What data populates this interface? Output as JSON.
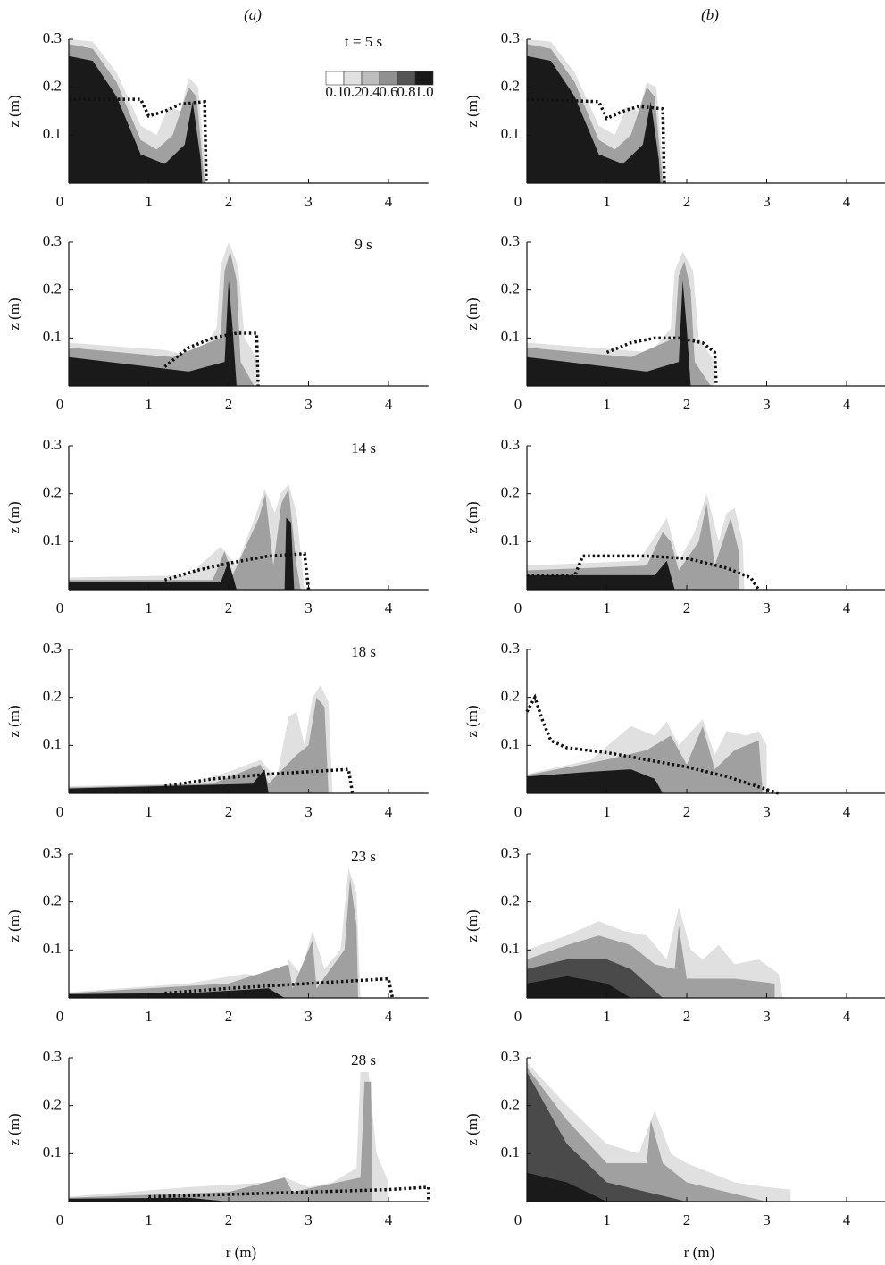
{
  "column_labels": [
    "(a)",
    "(b)"
  ],
  "chart_data": [
    {
      "type": "contour",
      "annotation": "t = 5 s",
      "ylabel": "z (m)",
      "xlim": [
        0,
        4.5
      ],
      "ylim": [
        0,
        0.3
      ],
      "xticks": [
        0,
        1,
        2,
        3,
        4
      ],
      "yticks": [
        0.1,
        0.2,
        0.3
      ],
      "contour_levels": [
        0.1,
        0.2,
        0.4,
        0.6,
        0.8,
        {
          "value": 1,
          "label": "1.0"
        }
      ],
      "level_colors": [
        "#ffffff",
        "#e0e0e0",
        "#bdbdbd",
        "#909090",
        "#555555",
        "#1a1a1a"
      ],
      "series": [
        {
          "color": "#111111",
          "x": [
            0,
            0.9,
            1.0,
            1.2,
            1.4,
            1.7,
            1.72
          ],
          "values": [
            0.175,
            0.175,
            0.14,
            0.15,
            0.165,
            0.17,
            0
          ]
        }
      ]
    },
    {
      "type": "contour",
      "ylabel": "z (m)",
      "xlim": [
        0,
        4.5
      ],
      "ylim": [
        0,
        0.3
      ],
      "xticks": [
        0,
        1,
        2,
        3,
        4
      ],
      "yticks": [
        0.1,
        0.2,
        0.3
      ],
      "series": [
        {
          "color": "#111111",
          "x": [
            0,
            0.9,
            1.0,
            1.2,
            1.4,
            1.7,
            1.72
          ],
          "values": [
            0.175,
            0.17,
            0.135,
            0.15,
            0.16,
            0.155,
            0
          ]
        }
      ]
    },
    {
      "type": "contour",
      "annotation": "9 s",
      "ylabel": "z (m)",
      "xlim": [
        0,
        4.5
      ],
      "ylim": [
        0,
        0.3
      ],
      "xticks": [
        0,
        1,
        2,
        3,
        4
      ],
      "yticks": [
        0.1,
        0.2,
        0.3
      ],
      "series": [
        {
          "color": "#111111",
          "x": [
            1.2,
            1.5,
            1.8,
            2.1,
            2.35,
            2.37
          ],
          "values": [
            0.04,
            0.08,
            0.1,
            0.11,
            0.11,
            0
          ]
        }
      ]
    },
    {
      "type": "contour",
      "ylabel": "z (m)",
      "xlim": [
        0,
        4.5
      ],
      "ylim": [
        0,
        0.3
      ],
      "xticks": [
        0,
        1,
        2,
        3,
        4
      ],
      "yticks": [
        0.1,
        0.2,
        0.3
      ],
      "series": [
        {
          "color": "#111111",
          "x": [
            1.0,
            1.3,
            1.6,
            1.9,
            2.2,
            2.35,
            2.37
          ],
          "values": [
            0.07,
            0.09,
            0.1,
            0.1,
            0.09,
            0.07,
            0
          ]
        }
      ]
    },
    {
      "type": "contour",
      "annotation": "14 s",
      "ylabel": "z (m)",
      "xlim": [
        0,
        4.5
      ],
      "ylim": [
        0,
        0.3
      ],
      "xticks": [
        0,
        1,
        2,
        3,
        4
      ],
      "yticks": [
        0.1,
        0.2,
        0.3
      ],
      "series": [
        {
          "color": "#111111",
          "x": [
            1.2,
            1.6,
            2.0,
            2.5,
            2.95,
            3.0
          ],
          "values": [
            0.02,
            0.04,
            0.055,
            0.07,
            0.075,
            0
          ]
        }
      ]
    },
    {
      "type": "contour",
      "ylabel": "z (m)",
      "xlim": [
        0,
        4.5
      ],
      "ylim": [
        0,
        0.3
      ],
      "xticks": [
        0,
        1,
        2,
        3,
        4
      ],
      "yticks": [
        0.1,
        0.2,
        0.3
      ],
      "series": [
        {
          "color": "#111111",
          "x": [
            0,
            0.6,
            0.7,
            1.0,
            1.5,
            2.0,
            2.5,
            2.8,
            2.9
          ],
          "values": [
            0.03,
            0.03,
            0.07,
            0.07,
            0.07,
            0.065,
            0.045,
            0.025,
            0
          ]
        }
      ]
    },
    {
      "type": "contour",
      "annotation": "18 s",
      "ylabel": "z (m)",
      "xlim": [
        0,
        4.5
      ],
      "ylim": [
        0,
        0.3
      ],
      "xticks": [
        0,
        1,
        2,
        3,
        4
      ],
      "yticks": [
        0.1,
        0.2,
        0.3
      ],
      "series": [
        {
          "color": "#111111",
          "x": [
            1.2,
            1.8,
            2.5,
            3.0,
            3.5,
            3.55
          ],
          "values": [
            0.015,
            0.03,
            0.04,
            0.045,
            0.05,
            0
          ]
        }
      ]
    },
    {
      "type": "contour",
      "ylabel": "z (m)",
      "xlim": [
        0,
        4.5
      ],
      "ylim": [
        0,
        0.3
      ],
      "xticks": [
        0,
        1,
        2,
        3,
        4
      ],
      "yticks": [
        0.1,
        0.2,
        0.3
      ],
      "series": [
        {
          "color": "#111111",
          "x": [
            0,
            0.1,
            0.2,
            0.3,
            0.5,
            1.0,
            1.5,
            2.0,
            2.5,
            3.15
          ],
          "values": [
            0.17,
            0.2,
            0.15,
            0.11,
            0.095,
            0.085,
            0.07,
            0.055,
            0.035,
            0
          ]
        }
      ]
    },
    {
      "type": "contour",
      "annotation": "23 s",
      "ylabel": "z (m)",
      "xlim": [
        0,
        4.5
      ],
      "ylim": [
        0,
        0.3
      ],
      "xticks": [
        0,
        1,
        2,
        3,
        4
      ],
      "yticks": [
        0.1,
        0.2,
        0.3
      ],
      "series": [
        {
          "color": "#111111",
          "x": [
            1.2,
            2.0,
            3.0,
            4.0,
            4.05
          ],
          "values": [
            0.01,
            0.02,
            0.03,
            0.04,
            0
          ]
        }
      ]
    },
    {
      "type": "contour",
      "ylabel": "z (m)",
      "xlim": [
        0,
        4.5
      ],
      "ylim": [
        0,
        0.3
      ],
      "xticks": [
        0,
        1,
        2,
        3,
        4
      ],
      "yticks": [
        0.1,
        0.2,
        0.3
      ]
    },
    {
      "type": "contour",
      "annotation": "28 s",
      "ylabel": "z (m)",
      "xlabel": "r (m)",
      "xlim": [
        0,
        4.5
      ],
      "ylim": [
        0,
        0.3
      ],
      "xticks": [
        0,
        1,
        2,
        3,
        4
      ],
      "yticks": [
        0.1,
        0.2,
        0.3
      ],
      "series": [
        {
          "color": "#111111",
          "x": [
            1.0,
            2.0,
            3.0,
            4.0,
            4.5,
            4.5
          ],
          "values": [
            0.01,
            0.015,
            0.02,
            0.025,
            0.03,
            0
          ]
        }
      ]
    },
    {
      "type": "contour",
      "ylabel": "z (m)",
      "xlabel": "r (m)",
      "xlim": [
        0,
        4.5
      ],
      "ylim": [
        0,
        0.3
      ],
      "xticks": [
        0,
        1,
        2,
        3,
        4
      ],
      "yticks": [
        0.1,
        0.2,
        0.3
      ]
    }
  ]
}
